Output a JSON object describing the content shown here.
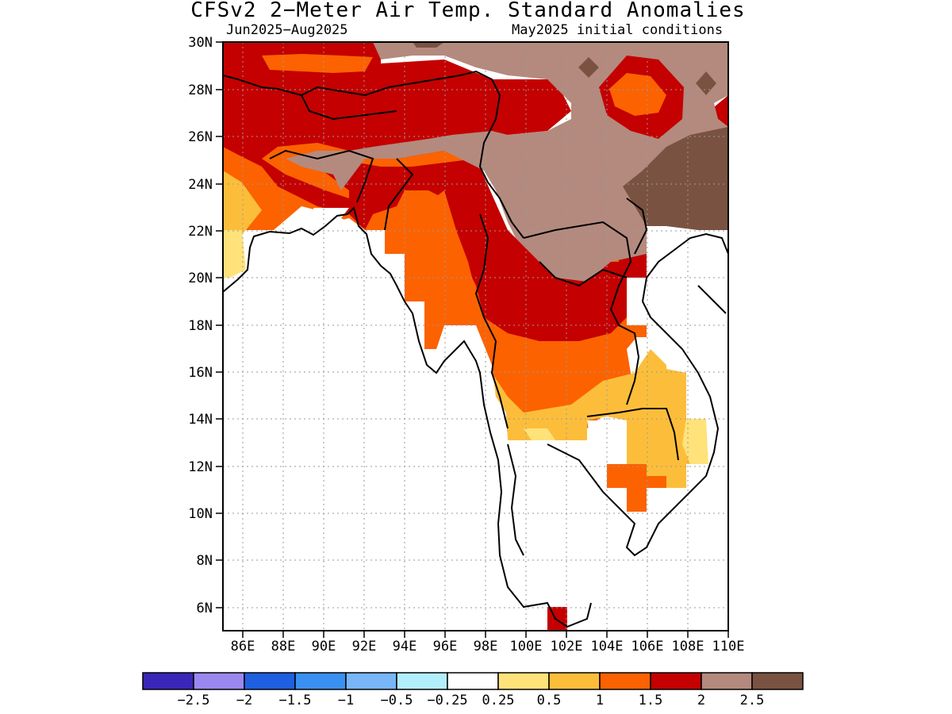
{
  "title": "CFSv2 2−Meter Air Temp. Standard Anomalies",
  "period": "Jun2025−Aug2025",
  "init": "May2025 initial conditions",
  "lat_ticks": [
    "30N",
    "28N",
    "26N",
    "24N",
    "22N",
    "20N",
    "18N",
    "16N",
    "14N",
    "12N",
    "10N",
    "8N",
    "6N"
  ],
  "lon_ticks": [
    "86E",
    "88E",
    "90E",
    "92E",
    "94E",
    "96E",
    "98E",
    "100E",
    "102E",
    "104E",
    "106E",
    "108E",
    "110E"
  ],
  "colorbar": {
    "colors": [
      "#3a27b8",
      "#9a88f0",
      "#1e60e0",
      "#3a90f0",
      "#78b6f8",
      "#b2eefc",
      "#ffffff",
      "#ffe27a",
      "#fcbe3a",
      "#fc6200",
      "#c40000",
      "#b48a7e",
      "#7a5242"
    ],
    "labels": [
      "−2.5",
      "−2",
      "−1.5",
      "−1",
      "−0.5",
      "−0.25",
      "0.25",
      "0.5",
      "1",
      "1.5",
      "2",
      "2.5"
    ]
  }
}
